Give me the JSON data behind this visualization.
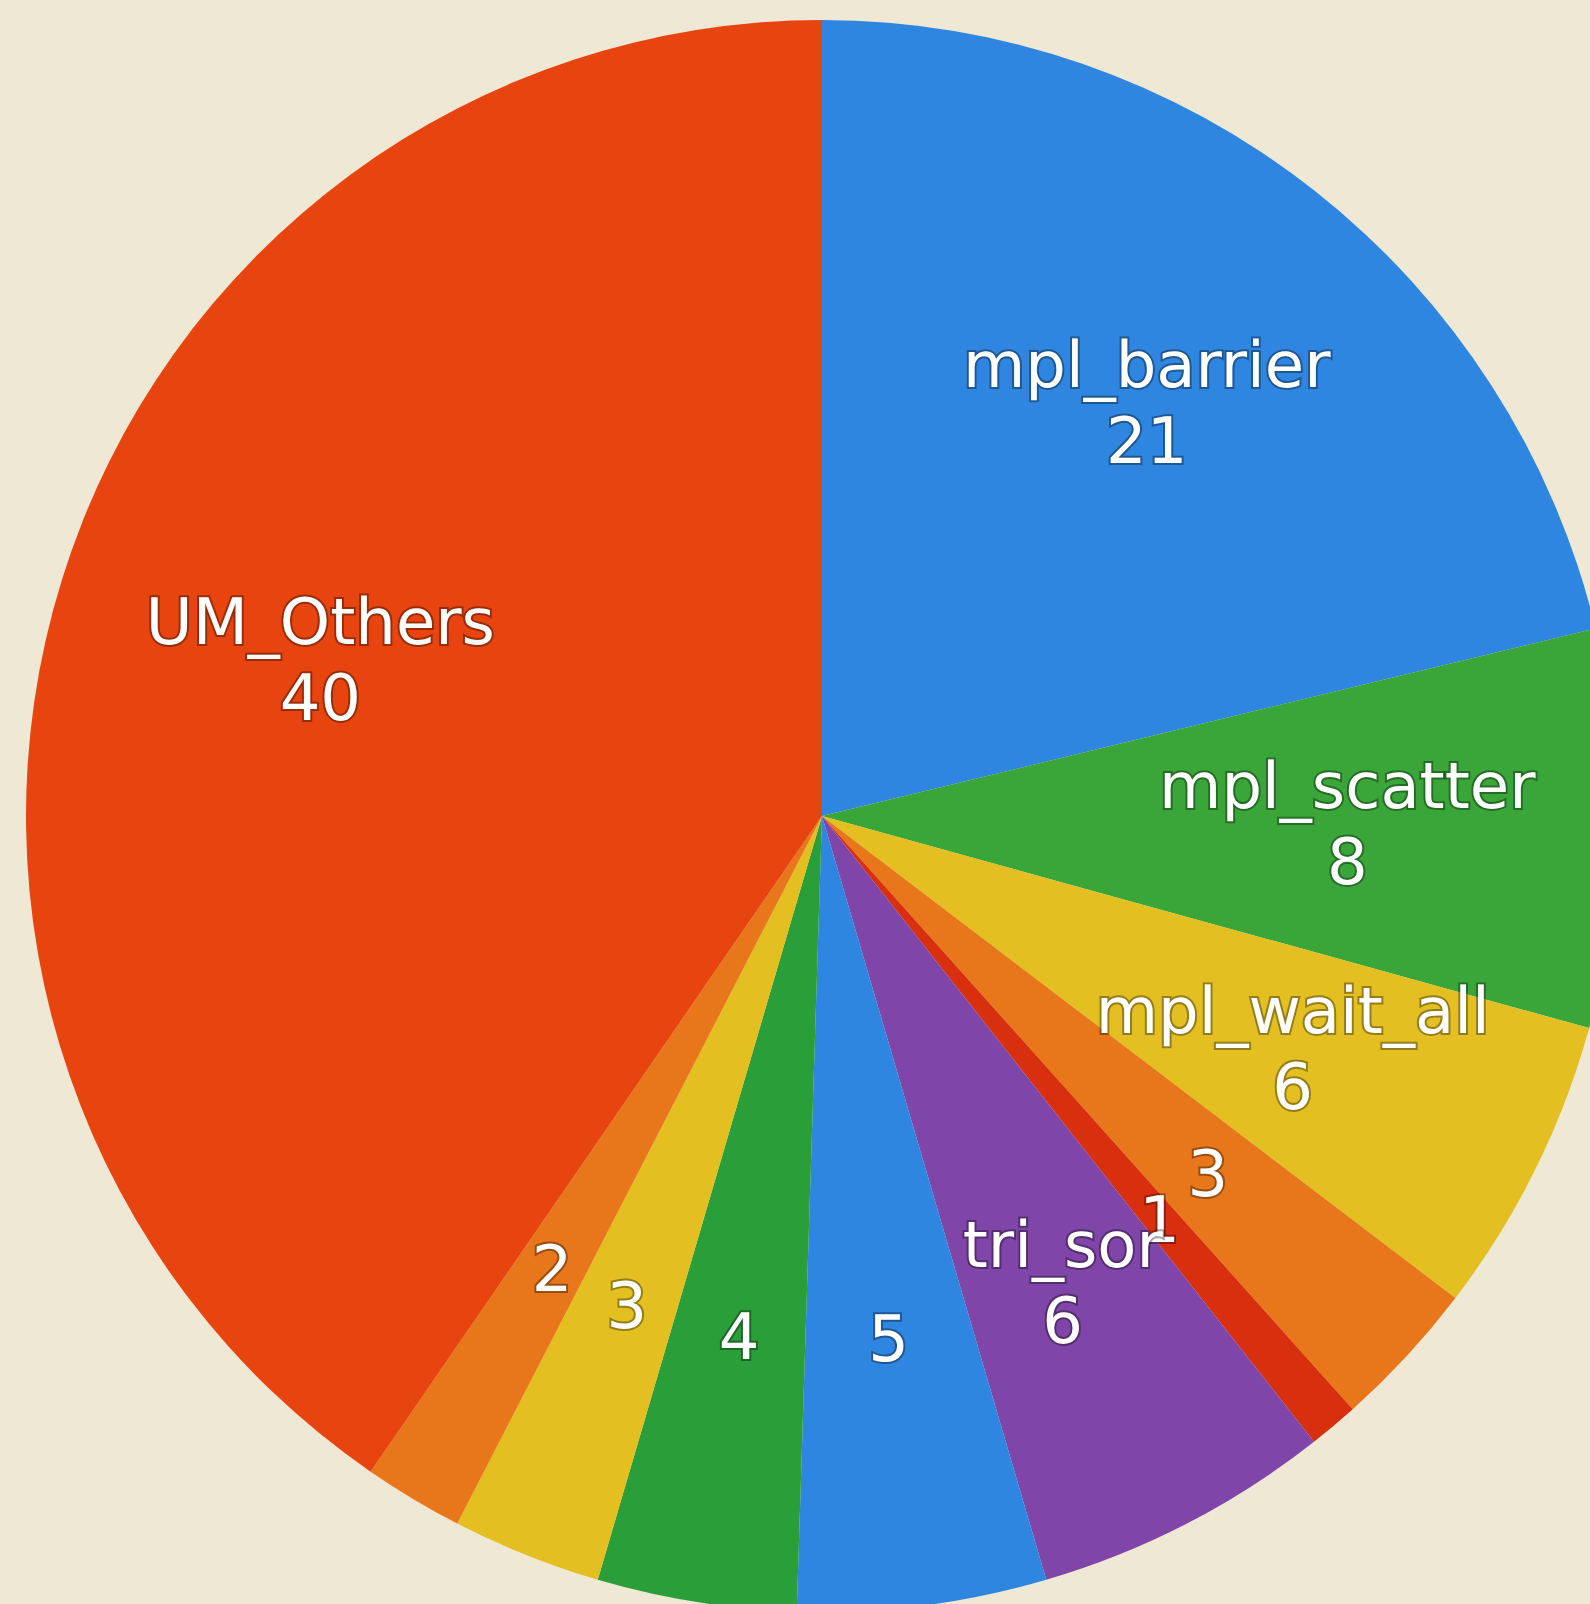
{
  "chart_data": {
    "type": "pie",
    "categories": [
      "mpl_barrier",
      "mpl_scatter",
      "mpl_wait_all",
      null,
      null,
      "tri_sor",
      null,
      null,
      null,
      null,
      "UM_Others"
    ],
    "values": [
      21,
      8,
      6,
      3,
      1,
      6,
      5,
      4,
      3,
      2,
      40
    ],
    "colors": [
      "#2f86e0",
      "#3aa63a",
      "#e3bf22",
      "#e8761a",
      "#d8300e",
      "#8045a8",
      "#2f86e0",
      "#2a9e38",
      "#e3bf22",
      "#e8761a",
      "#e8440f"
    ],
    "data_labels": true
  }
}
